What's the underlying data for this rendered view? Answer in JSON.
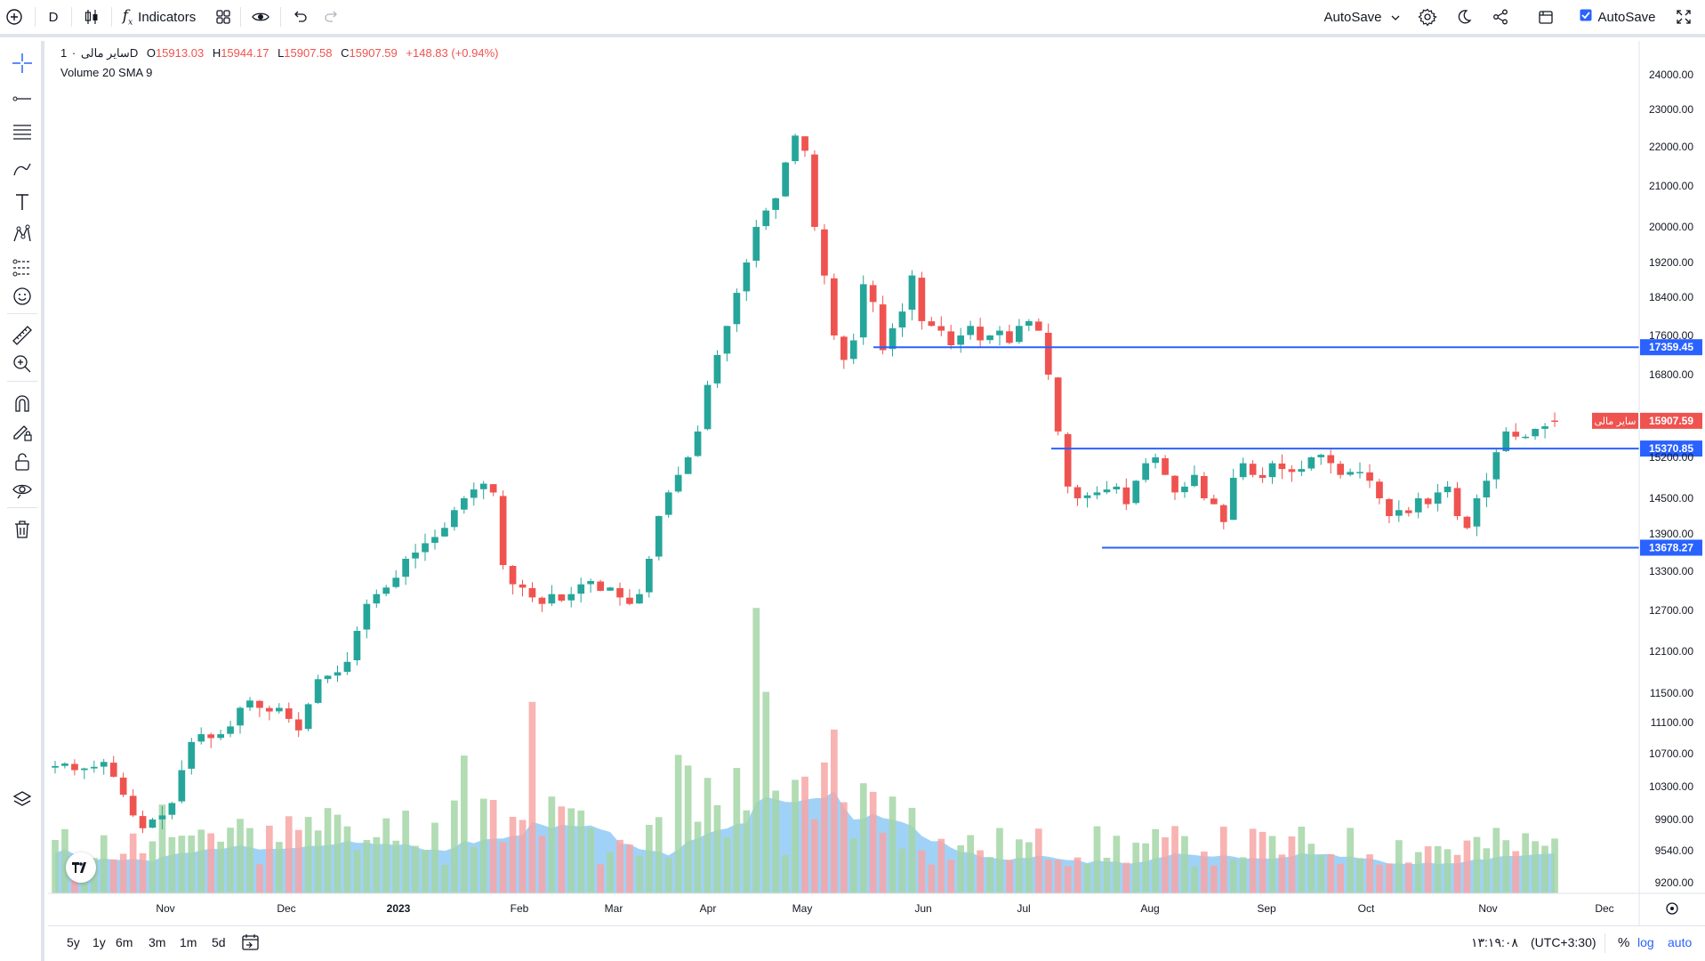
{
  "toolbar": {
    "interval": "D",
    "indicators_label": "Indicators",
    "autosave_menu_label": "AutoSave",
    "autosave_checkbox_label": "AutoSave",
    "autosave_checked": true
  },
  "legend": {
    "symbol": "سایر مالی",
    "interval": "1D",
    "open_label": "O",
    "open": "15913.03",
    "high_label": "H",
    "high": "15944.17",
    "low_label": "L",
    "low": "15907.58",
    "close_label": "C",
    "close": "15907.59",
    "change": "+148.83 (+0.94%)",
    "indicator": "Volume 20 SMA 9"
  },
  "price_axis": {
    "ticks": [
      "24000.00",
      "23000.00",
      "22000.00",
      "21000.00",
      "20000.00",
      "19200.00",
      "18400.00",
      "17600.00",
      "16800.00",
      "15200.00",
      "14500.00",
      "13900.00",
      "13300.00",
      "12700.00",
      "12100.00",
      "11500.00",
      "11100.00",
      "10700.00",
      "10300.00",
      "9900.00",
      "9540.00",
      "9200.00"
    ]
  },
  "time_axis": {
    "ticks": [
      "Nov",
      "Dec",
      "2023",
      "Feb",
      "Mar",
      "Apr",
      "May",
      "Jun",
      "Jul",
      "Aug",
      "Sep",
      "Oct",
      "Nov",
      "Dec"
    ]
  },
  "horizontal_lines": [
    {
      "price": "17359.45"
    },
    {
      "price": "15370.85"
    },
    {
      "price": "13678.27"
    }
  ],
  "current_price": {
    "symbol_label": "سایر مالی",
    "value": "15907.59"
  },
  "bottom": {
    "ranges": [
      "5y",
      "1y",
      "6m",
      "3m",
      "1m",
      "5d"
    ],
    "time": "۱۳:۱۹:۰۸",
    "timezone": "(UTC+3:30)",
    "percent": "%",
    "log": "log",
    "auto": "auto"
  },
  "colors": {
    "up": "#26a69a",
    "down": "#ef5350",
    "line": "#2962ff",
    "vol_up": "#a5d6a7",
    "vol_down": "#f7a6a6",
    "sma_fill": "#8fcaf6"
  },
  "chart_data": {
    "type": "candlestick",
    "symbol": "سایر مالی",
    "interval": "1D",
    "x_ticks": [
      "Nov",
      "Dec",
      "2023",
      "Feb",
      "Mar",
      "Apr",
      "May",
      "Jun",
      "Jul",
      "Aug",
      "Sep",
      "Oct",
      "Nov",
      "Dec"
    ],
    "y_ticks": [
      24000,
      23000,
      22000,
      21000,
      20000,
      19200,
      18400,
      17600,
      16800,
      15200,
      14500,
      13900,
      13300,
      12700,
      12100,
      11500,
      11100,
      10700,
      10300,
      9900,
      9540,
      9200
    ],
    "closes": [
      10550,
      10580,
      10500,
      10520,
      10540,
      10600,
      10420,
      10200,
      9950,
      9800,
      9900,
      9950,
      10100,
      10500,
      10850,
      10950,
      10900,
      10950,
      11050,
      11300,
      11400,
      11300,
      11250,
      11300,
      11150,
      11000,
      11350,
      11700,
      11750,
      11800,
      11950,
      12400,
      12800,
      12950,
      13050,
      13200,
      13500,
      13600,
      13750,
      13850,
      14000,
      14300,
      14500,
      14650,
      14750,
      14600,
      13400,
      13100,
      13050,
      12900,
      12800,
      12950,
      12850,
      12950,
      13100,
      13150,
      13000,
      13050,
      12900,
      12800,
      12950,
      13500,
      14200,
      14600,
      14900,
      15200,
      15700,
      16600,
      17200,
      17800,
      18500,
      19200,
      20000,
      20400,
      20700,
      21600,
      22300,
      21900,
      20000,
      18900,
      17600,
      17100,
      17500,
      18700,
      18300,
      17300,
      17750,
      18100,
      18900,
      17900,
      17800,
      17700,
      17400,
      17600,
      17800,
      17500,
      17600,
      17700,
      17450,
      17800,
      17900,
      17700,
      16800,
      15700,
      14700,
      14500,
      14550,
      14600,
      14650,
      14700,
      14400,
      14800,
      15100,
      15200,
      14900,
      14600,
      14700,
      14900,
      14500,
      14400,
      14100,
      14850,
      15100,
      14900,
      14850,
      15100,
      15000,
      14950,
      15000,
      15200,
      15250,
      15100,
      14900,
      14950,
      14950,
      14800,
      14500,
      14200,
      14300,
      14250,
      14500,
      14400,
      14600,
      14700,
      14200,
      14000,
      14500,
      14800,
      15300,
      15700,
      15600,
      15600,
      15750,
      15800,
      15907.59
    ],
    "levels": [
      17359.45,
      15370.85,
      13678.27
    ],
    "last": {
      "open": 15913.03,
      "high": 15944.17,
      "low": 15907.58,
      "close": 15907.59,
      "change": 148.83,
      "change_pct": 0.94
    }
  }
}
